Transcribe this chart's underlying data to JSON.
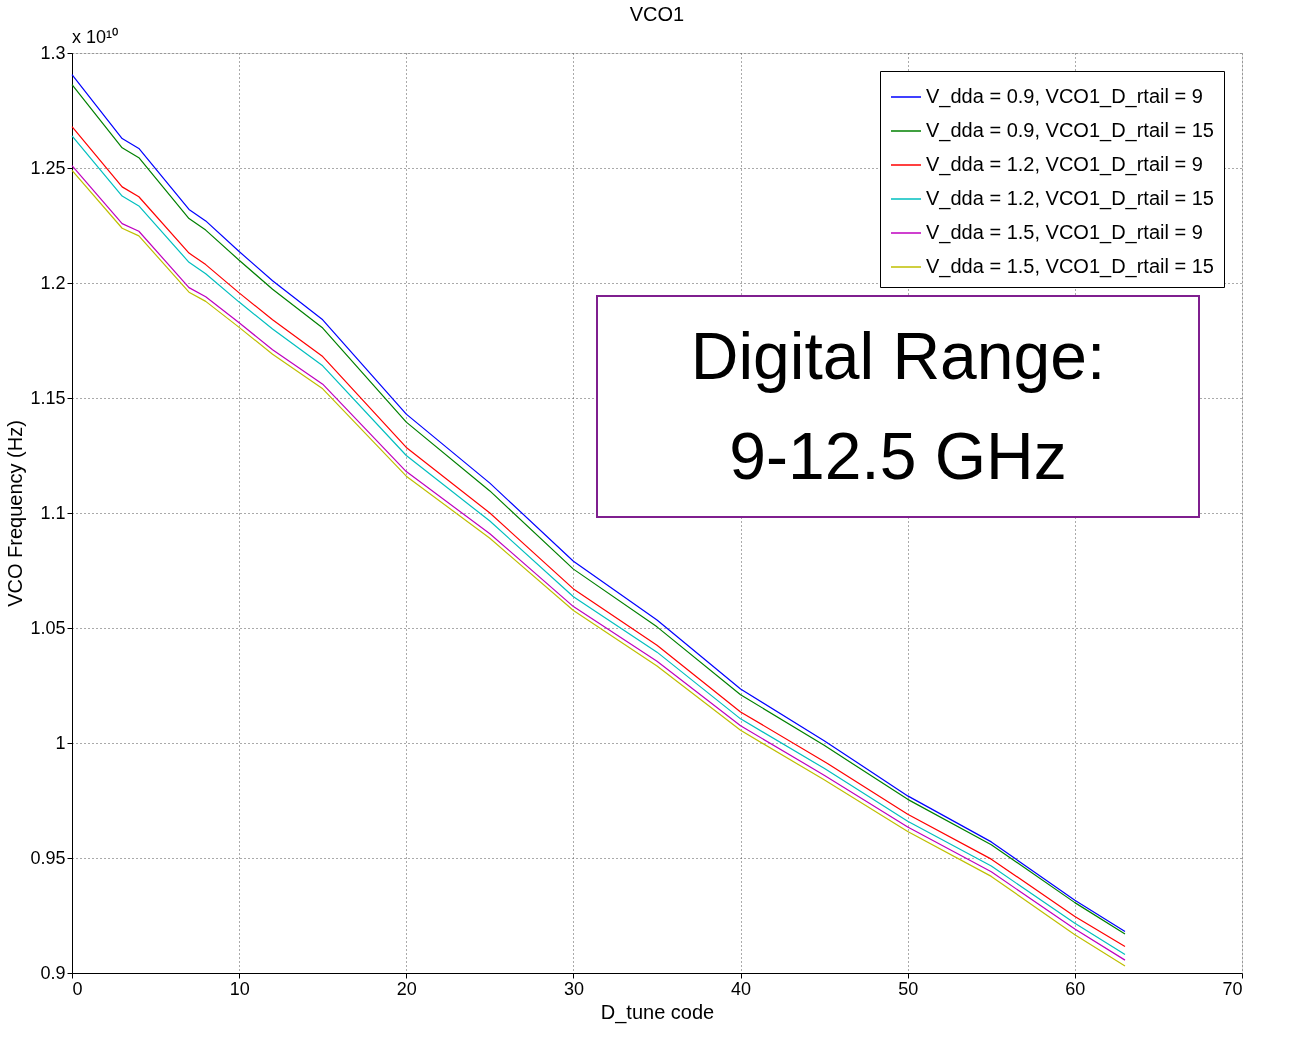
{
  "chart_data": {
    "type": "line",
    "title": "VCO1",
    "xlabel": "D_tune code",
    "ylabel": "VCO Frequency (Hz)",
    "x": [
      0,
      3,
      4,
      7,
      8,
      10,
      12,
      15,
      20,
      25,
      30,
      35,
      40,
      45,
      50,
      55,
      60,
      63
    ],
    "xlim": [
      0,
      70
    ],
    "xticks": [
      0,
      10,
      20,
      30,
      40,
      50,
      60,
      70
    ],
    "ylim": [
      0.9,
      1.3
    ],
    "yticks": [
      0.9,
      0.95,
      1,
      1.05,
      1.1,
      1.15,
      1.2,
      1.25,
      1.3
    ],
    "grid": true,
    "legend": "top right",
    "line_style": "solid",
    "annotations": [
      "x 10¹⁰",
      "Digital Range:",
      "9-12.5 GHz"
    ],
    "series": [
      {
        "name": "V_dda = 0.9, VCO1_D_rtail = 9",
        "color": "#0000ff",
        "values": [
          1.2906,
          1.2628,
          1.2585,
          1.232,
          1.227,
          1.2137,
          1.201,
          1.184,
          1.143,
          1.113,
          1.079,
          1.0535,
          1.0235,
          1.001,
          0.977,
          0.957,
          0.9316,
          0.918
        ]
      },
      {
        "name": "V_dda = 0.9, VCO1_D_rtail = 15",
        "color": "#008000",
        "values": [
          1.2863,
          1.2588,
          1.2545,
          1.228,
          1.223,
          1.2099,
          1.1973,
          1.1804,
          1.1395,
          1.1096,
          1.0756,
          1.0505,
          1.021,
          0.999,
          0.9755,
          0.9558,
          0.9306,
          0.917
        ]
      },
      {
        "name": "V_dda = 1.2, VCO1_D_rtail = 9",
        "color": "#ff0000",
        "values": [
          1.268,
          1.2418,
          1.2375,
          1.213,
          1.208,
          1.1957,
          1.184,
          1.168,
          1.1285,
          1.1,
          1.067,
          1.0425,
          1.0135,
          0.992,
          0.969,
          0.9495,
          0.9246,
          0.9115
        ]
      },
      {
        "name": "V_dda = 1.2, VCO1_D_rtail = 15",
        "color": "#00bfbf",
        "values": [
          1.264,
          1.2378,
          1.2335,
          1.209,
          1.204,
          1.1917,
          1.18,
          1.164,
          1.125,
          1.0965,
          1.0636,
          1.0395,
          1.0105,
          0.989,
          0.966,
          0.9465,
          0.9216,
          0.908
        ]
      },
      {
        "name": "V_dda = 1.5, VCO1_D_rtail = 9",
        "color": "#bf00bf",
        "values": [
          1.251,
          1.2258,
          1.2225,
          1.198,
          1.194,
          1.1827,
          1.171,
          1.156,
          1.118,
          1.091,
          1.0593,
          1.0355,
          1.0075,
          0.986,
          0.9635,
          0.944,
          0.9191,
          0.9056
        ]
      },
      {
        "name": "V_dda = 1.5, VCO1_D_rtail = 15",
        "color": "#bfbf00",
        "values": [
          1.249,
          1.2238,
          1.2205,
          1.196,
          1.192,
          1.1807,
          1.169,
          1.154,
          1.116,
          1.089,
          1.0576,
          1.0335,
          1.0055,
          0.984,
          0.9615,
          0.942,
          0.9166,
          0.903
        ]
      }
    ]
  }
}
